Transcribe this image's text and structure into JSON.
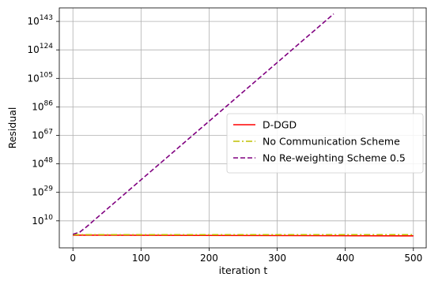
{
  "chart_data": {
    "type": "line",
    "title": "",
    "xlabel": "iteration t",
    "ylabel": "Residual",
    "x_ticks": [
      0,
      100,
      200,
      300,
      400,
      500
    ],
    "y_scale": "log",
    "y_tick_exponents": [
      10,
      29,
      48,
      67,
      86,
      105,
      124,
      143
    ],
    "y_tick_base": "10",
    "xlim": [
      -20,
      520
    ],
    "ylim_log10": [
      -8,
      152
    ],
    "grid": true,
    "legend_position": "center-right",
    "series": [
      {
        "name": "D-DGD",
        "color": "#ff0000",
        "dash": "solid",
        "x": [
          0,
          500
        ],
        "log10_y": [
          0.5,
          0.0
        ]
      },
      {
        "name": "No Communication Scheme",
        "color": "#bfbf00",
        "dash": "dashdot",
        "x": [
          0,
          500
        ],
        "log10_y": [
          0.8,
          0.8
        ]
      },
      {
        "name": "No Re-weighting Scheme 0.5",
        "color": "#800080",
        "dash": "dashed",
        "x": [
          0,
          10,
          20,
          30,
          383
        ],
        "log10_y": [
          1,
          2.5,
          6,
          10,
          148
        ]
      }
    ]
  }
}
